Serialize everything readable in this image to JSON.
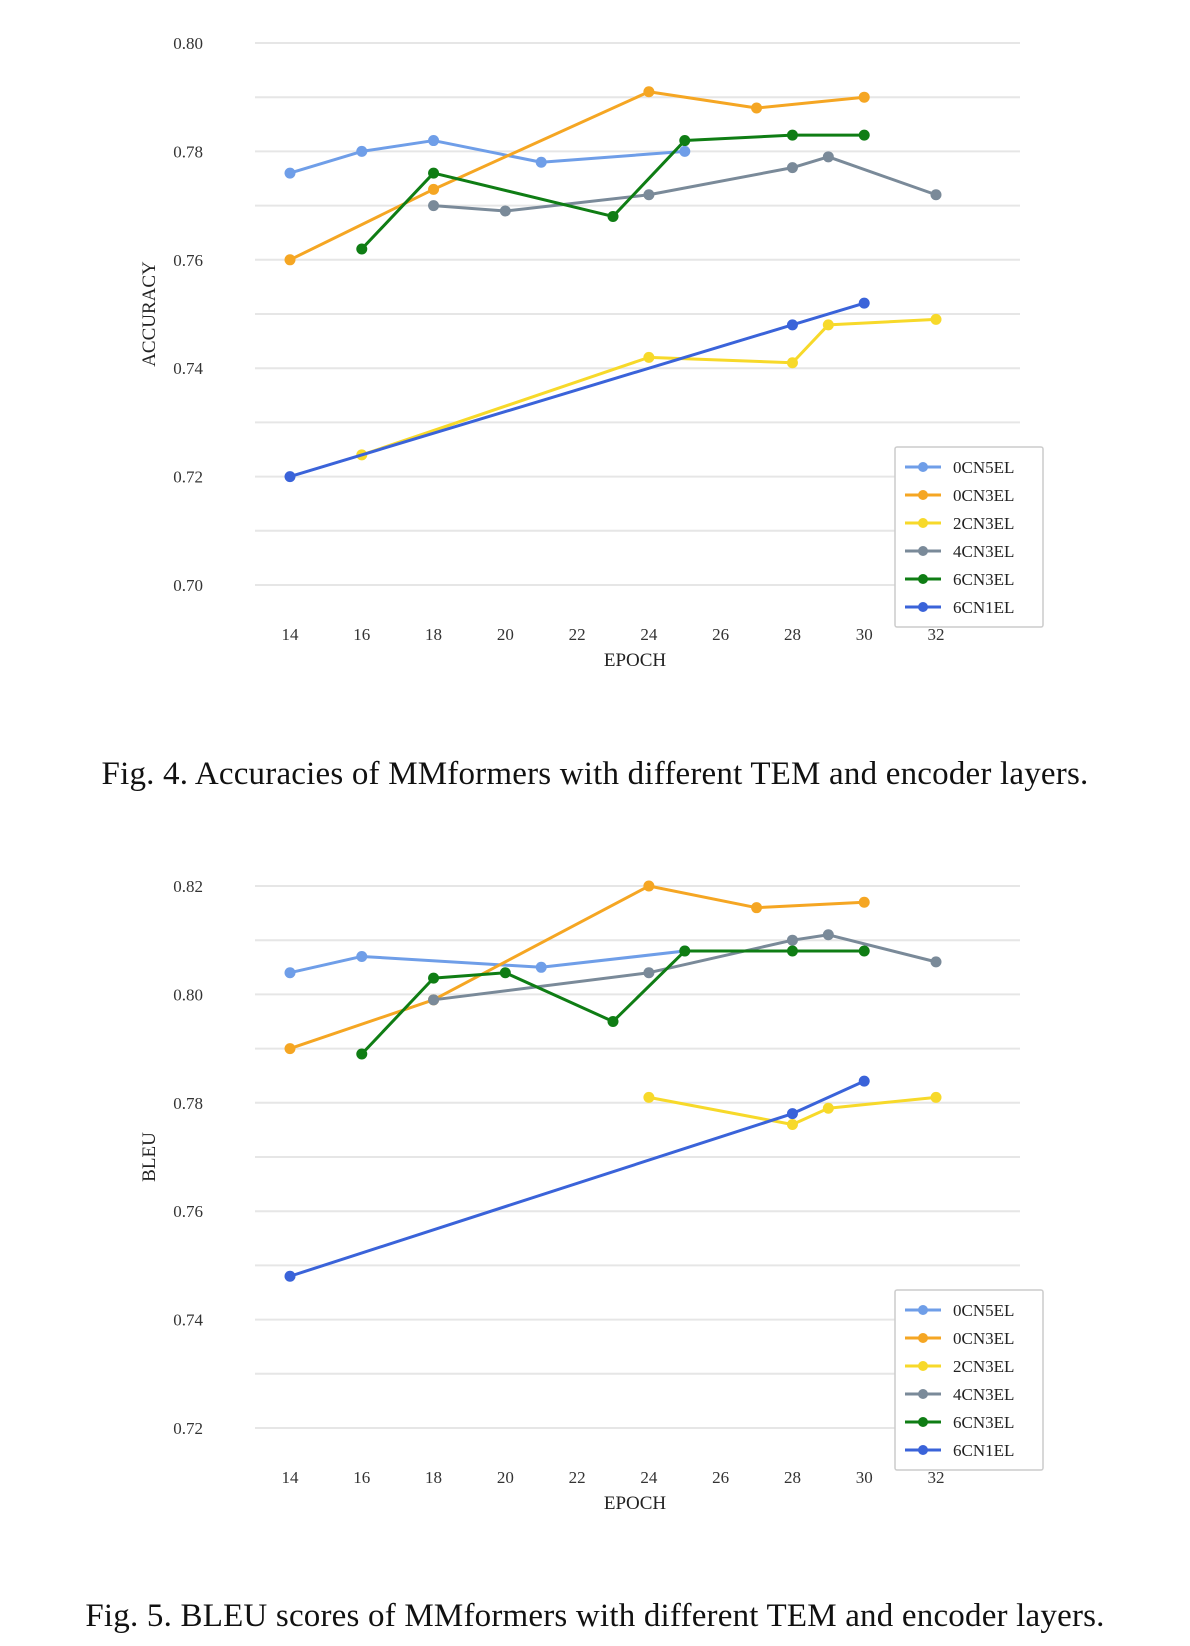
{
  "colors": {
    "0CN5EL": "#6f9ee8",
    "0CN3EL": "#f5a623",
    "2CN3EL": "#f7d92a",
    "4CN3EL": "#7a8a99",
    "6CN3EL": "#0f7d14",
    "6CN1EL": "#3a63d9",
    "grid": "#e6e6e6"
  },
  "captions": {
    "fig4": "Fig. 4.   Accuracies of MMformers with different TEM and encoder layers.",
    "fig5": "Fig. 5.   BLEU scores of MMformers with different TEM and encoder layers."
  },
  "chart_data": [
    {
      "type": "line",
      "title": "",
      "xlabel": "EPOCH",
      "ylabel": "ACCURACY",
      "xticks": [
        14,
        16,
        18,
        20,
        22,
        24,
        26,
        28,
        30,
        32
      ],
      "yticks": [
        "0.70",
        "0.72",
        "0.74",
        "0.76",
        "0.78",
        "0.80"
      ],
      "ylim": [
        0.7,
        0.8
      ],
      "xlim": [
        14,
        32
      ],
      "grid": true,
      "legend": "bottom-right",
      "series": [
        {
          "name": "0CN5EL",
          "points": [
            [
              14,
              0.776
            ],
            [
              16,
              0.78
            ],
            [
              18,
              0.782
            ],
            [
              21,
              0.778
            ],
            [
              25,
              0.78
            ]
          ]
        },
        {
          "name": "0CN3EL",
          "points": [
            [
              14,
              0.76
            ],
            [
              18,
              0.773
            ],
            [
              24,
              0.791
            ],
            [
              27,
              0.788
            ],
            [
              30,
              0.79
            ]
          ]
        },
        {
          "name": "2CN3EL",
          "points": [
            [
              16,
              0.724
            ],
            [
              24,
              0.742
            ],
            [
              28,
              0.741
            ],
            [
              29,
              0.748
            ],
            [
              32,
              0.749
            ]
          ]
        },
        {
          "name": "4CN3EL",
          "points": [
            [
              18,
              0.77
            ],
            [
              20,
              0.769
            ],
            [
              24,
              0.772
            ],
            [
              28,
              0.777
            ],
            [
              29,
              0.779
            ],
            [
              32,
              0.772
            ]
          ]
        },
        {
          "name": "6CN3EL",
          "points": [
            [
              16,
              0.762
            ],
            [
              18,
              0.776
            ],
            [
              23,
              0.768
            ],
            [
              25,
              0.782
            ],
            [
              28,
              0.783
            ],
            [
              30,
              0.783
            ]
          ]
        },
        {
          "name": "6CN1EL",
          "points": [
            [
              14,
              0.72
            ],
            [
              28,
              0.748
            ],
            [
              30,
              0.752
            ]
          ]
        }
      ]
    },
    {
      "type": "line",
      "title": "",
      "xlabel": "EPOCH",
      "ylabel": "BLEU",
      "xticks": [
        14,
        16,
        18,
        20,
        22,
        24,
        26,
        28,
        30,
        32
      ],
      "yticks": [
        "0.72",
        "0.74",
        "0.76",
        "0.78",
        "0.80",
        "0.82"
      ],
      "ylim": [
        0.72,
        0.82
      ],
      "xlim": [
        14,
        32
      ],
      "grid": true,
      "legend": "bottom-right",
      "series": [
        {
          "name": "0CN5EL",
          "points": [
            [
              14,
              0.804
            ],
            [
              16,
              0.807
            ],
            [
              21,
              0.805
            ],
            [
              25,
              0.808
            ]
          ]
        },
        {
          "name": "0CN3EL",
          "points": [
            [
              14,
              0.79
            ],
            [
              18,
              0.799
            ],
            [
              24,
              0.82
            ],
            [
              27,
              0.816
            ],
            [
              30,
              0.817
            ]
          ]
        },
        {
          "name": "2CN3EL",
          "points": [
            [
              24,
              0.781
            ],
            [
              28,
              0.776
            ],
            [
              29,
              0.779
            ],
            [
              32,
              0.781
            ]
          ]
        },
        {
          "name": "4CN3EL",
          "points": [
            [
              18,
              0.799
            ],
            [
              24,
              0.804
            ],
            [
              28,
              0.81
            ],
            [
              29,
              0.811
            ],
            [
              32,
              0.806
            ]
          ]
        },
        {
          "name": "6CN3EL",
          "points": [
            [
              16,
              0.789
            ],
            [
              18,
              0.803
            ],
            [
              20,
              0.804
            ],
            [
              23,
              0.795
            ],
            [
              25,
              0.808
            ],
            [
              28,
              0.808
            ],
            [
              30,
              0.808
            ]
          ]
        },
        {
          "name": "6CN1EL",
          "points": [
            [
              14,
              0.748
            ],
            [
              28,
              0.778
            ],
            [
              30,
              0.784
            ]
          ]
        }
      ]
    }
  ]
}
